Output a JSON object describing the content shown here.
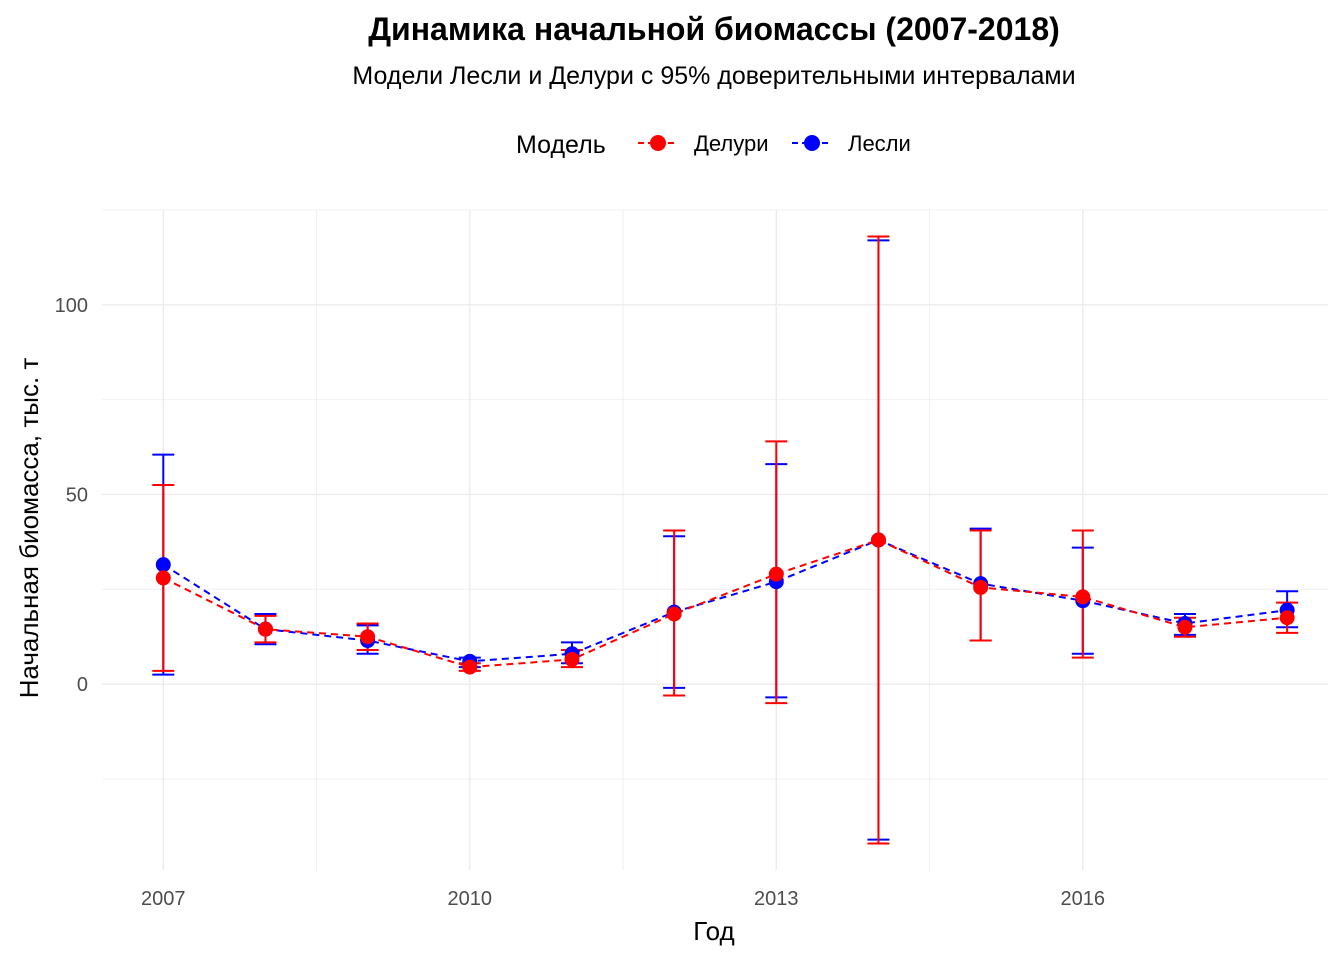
{
  "chart_data": {
    "type": "line",
    "title": "Динамика начальной биомассы (2007-2018)",
    "subtitle": "Модели Лесли и Делури с 95% доверительными интервалами",
    "xlabel": "Год",
    "ylabel": "Начальная биомасса, тыс. т",
    "x": [
      2007,
      2008,
      2009,
      2010,
      2011,
      2012,
      2013,
      2014,
      2015,
      2016,
      2017,
      2018
    ],
    "xlim": [
      2006.4,
      2018.4
    ],
    "ylim": [
      -49,
      125
    ],
    "x_ticks": [
      2007,
      2010,
      2013,
      2016
    ],
    "x_tick_labels": [
      "2007",
      "2010",
      "2013",
      "2016"
    ],
    "y_ticks": [
      0,
      50,
      100
    ],
    "y_tick_labels": [
      "0",
      "50",
      "100"
    ],
    "grid": true,
    "legend": {
      "title": "Модель",
      "position": "top"
    },
    "series": [
      {
        "name": "Делури",
        "color": "#ff0000",
        "values": [
          28,
          14.5,
          12.5,
          4.5,
          6.5,
          18.5,
          29,
          38,
          25.5,
          23,
          15,
          17.5
        ],
        "lower": [
          3.5,
          11,
          9,
          3.5,
          4.5,
          -3,
          -5,
          -42,
          11.5,
          7,
          12.5,
          13.5
        ],
        "upper": [
          52.5,
          18,
          16,
          5.5,
          9,
          40.5,
          64,
          118,
          40.5,
          40.5,
          17.5,
          21.5
        ]
      },
      {
        "name": "Лесли",
        "color": "#0000ff",
        "values": [
          31.5,
          14.5,
          11.5,
          6,
          8,
          19,
          27,
          38,
          26.5,
          22,
          16,
          19.5
        ],
        "lower": [
          2.5,
          10.5,
          8,
          4.5,
          5.5,
          -1,
          -3.5,
          -41,
          11.5,
          8,
          13,
          15
        ],
        "upper": [
          60.5,
          18.5,
          15.5,
          7,
          11,
          39,
          58,
          117,
          41,
          36,
          18.5,
          24.5
        ]
      }
    ]
  }
}
